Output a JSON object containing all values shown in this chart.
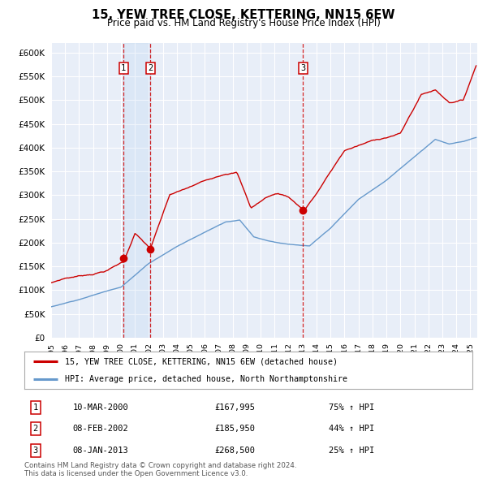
{
  "title": "15, YEW TREE CLOSE, KETTERING, NN15 6EW",
  "subtitle": "Price paid vs. HM Land Registry's House Price Index (HPI)",
  "footer": "Contains HM Land Registry data © Crown copyright and database right 2024.\nThis data is licensed under the Open Government Licence v3.0.",
  "legend_line1": "15, YEW TREE CLOSE, KETTERING, NN15 6EW (detached house)",
  "legend_line2": "HPI: Average price, detached house, North Northamptonshire",
  "transactions": [
    {
      "num": 1,
      "date": "10-MAR-2000",
      "price": "£167,995",
      "pct": "75% ↑ HPI"
    },
    {
      "num": 2,
      "date": "08-FEB-2002",
      "price": "£185,950",
      "pct": "44% ↑ HPI"
    },
    {
      "num": 3,
      "date": "08-JAN-2013",
      "price": "£268,500",
      "pct": "25% ↑ HPI"
    }
  ],
  "transaction_years": [
    2000.19,
    2002.1,
    2013.03
  ],
  "transaction_prices": [
    167995,
    185950,
    268500
  ],
  "shade_between": [
    2000.19,
    2002.1
  ],
  "ylim": [
    0,
    620000
  ],
  "yticks": [
    0,
    50000,
    100000,
    150000,
    200000,
    250000,
    300000,
    350000,
    400000,
    450000,
    500000,
    550000,
    600000
  ],
  "xlim_start": 1995.0,
  "xlim_end": 2025.5,
  "bg_color": "#e8eef8",
  "grid_color": "#ffffff",
  "red_line_color": "#cc0000",
  "blue_line_color": "#6699cc"
}
